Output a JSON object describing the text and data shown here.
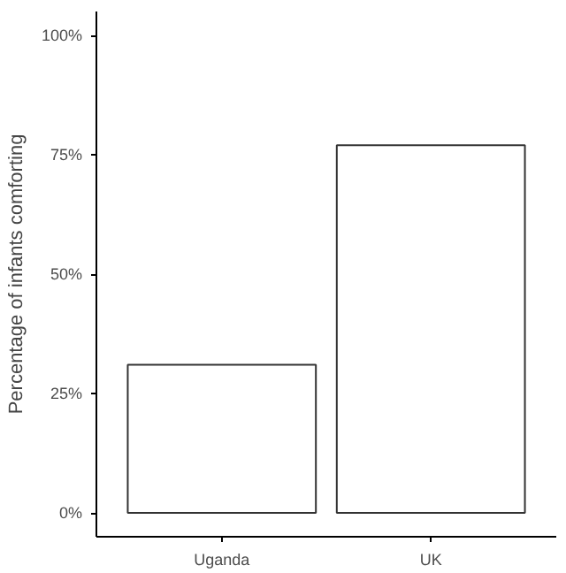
{
  "chart_data": {
    "type": "bar",
    "ylabel": "Percentage of infants comforting",
    "categories": [
      "Uganda",
      "UK"
    ],
    "values": [
      31,
      77
    ],
    "color": "#ffffff",
    "ylim": [
      -5,
      105
    ],
    "yticks": [
      {
        "value": 0,
        "label": "0%"
      },
      {
        "value": 25,
        "label": "25%"
      },
      {
        "value": 50,
        "label": "50%"
      },
      {
        "value": 75,
        "label": "75%"
      },
      {
        "value": 100,
        "label": "100%"
      }
    ],
    "grid": false
  }
}
